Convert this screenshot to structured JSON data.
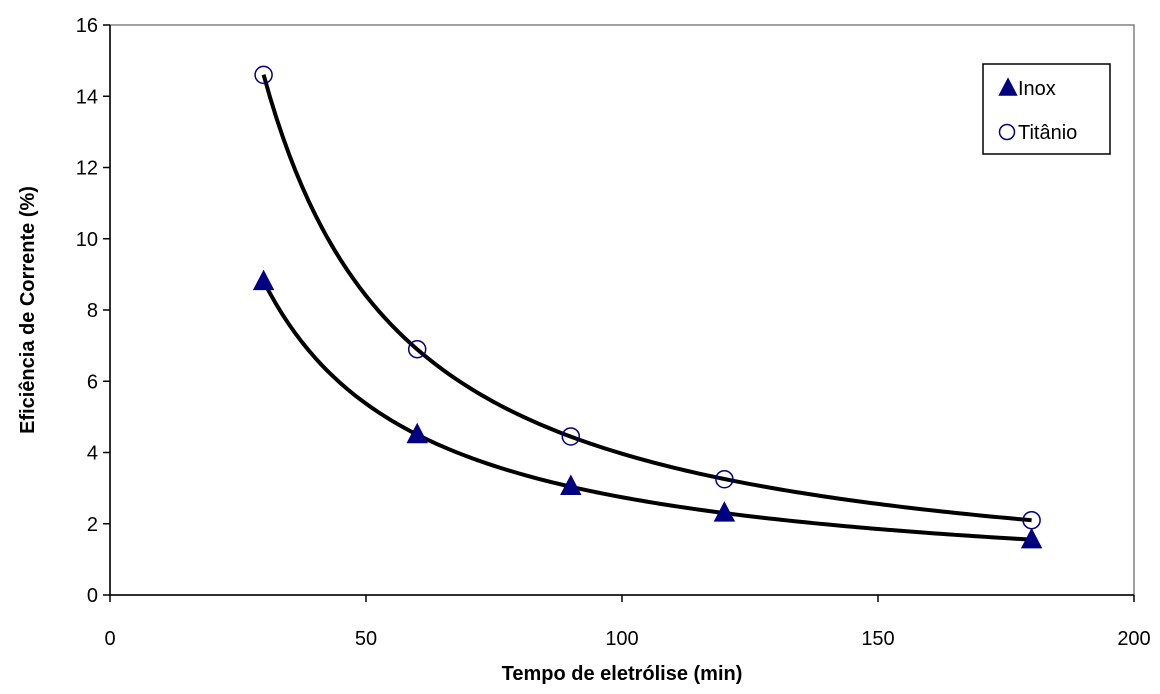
{
  "chart_data": {
    "type": "scatter",
    "title": "",
    "xlabel": "Tempo de eletrólise (min)",
    "ylabel": "Eficiência de Corrente (%)",
    "xlim": [
      0,
      200
    ],
    "ylim": [
      0,
      16
    ],
    "xticks": [
      0,
      50,
      100,
      150,
      200
    ],
    "yticks": [
      0,
      2,
      4,
      6,
      8,
      10,
      12,
      14,
      16
    ],
    "grid": false,
    "legend_position": "top-right",
    "trendline": "power",
    "series": [
      {
        "name": "Inox",
        "marker": "filled-triangle",
        "color": "#000080",
        "x": [
          30,
          60,
          90,
          120,
          180
        ],
        "y": [
          8.8,
          4.5,
          3.05,
          2.3,
          1.55
        ]
      },
      {
        "name": "Titânio",
        "marker": "open-circle",
        "color": "#000080",
        "x": [
          30,
          60,
          90,
          120,
          180
        ],
        "y": [
          14.6,
          6.9,
          4.45,
          3.25,
          2.1
        ]
      }
    ]
  }
}
